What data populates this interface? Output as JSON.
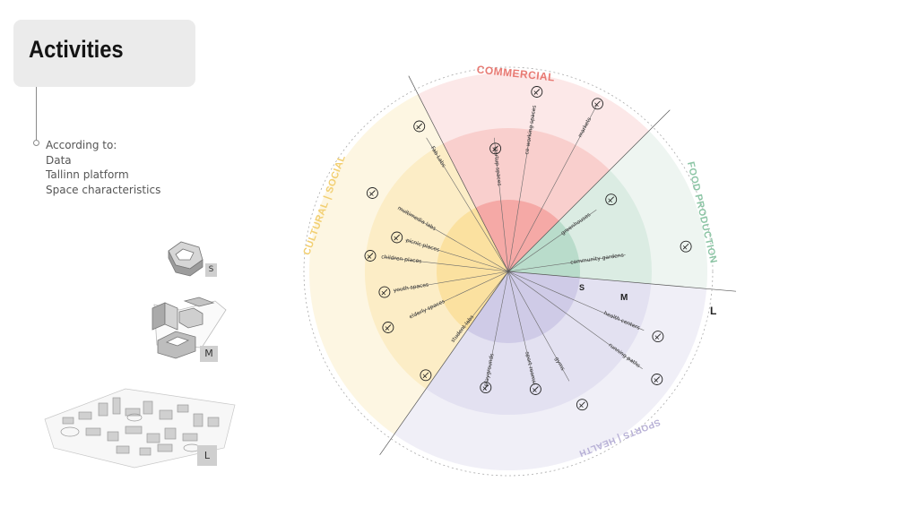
{
  "header": {
    "title": "Activities"
  },
  "info": {
    "heading": "According to:",
    "items": [
      "Data",
      "Tallinn platform",
      "Space characteristics"
    ]
  },
  "scale_tags": {
    "small": "S",
    "medium": "M",
    "large": "L"
  },
  "wheel": {
    "ring_labels": {
      "s": "S",
      "m": "M",
      "l": "L"
    },
    "categories": [
      {
        "name": "COMMERCIAL",
        "color": "#e87a73"
      },
      {
        "name": "FOOD PRODUCTION",
        "color": "#8cc5a5"
      },
      {
        "name": "SPORTS | HEALTH",
        "color": "#b7b0d6"
      },
      {
        "name": "CULTURAL | SOCIAL",
        "color": "#f2cf72"
      }
    ],
    "activities": [
      "Fab Labs",
      "startup spaces",
      "co-working spaces",
      "markets",
      "greenhouses",
      "community gardens",
      "health centers",
      "running paths",
      "gyms",
      "sport rooms",
      "playgrounds",
      "student labs",
      "elderly spaces",
      "youth spaces",
      "children places",
      "picnic places",
      "multimedia labs"
    ],
    "icons": [
      "stars-icon",
      "seedling-icon",
      "people-meeting-icon",
      "market-stall-icon",
      "greenhouse-icon",
      "vegetable-plants-icon",
      "heart-plus-icon",
      "running-path-icon",
      "gym-equipment-icon",
      "stretching-person-icon",
      "swing-icon",
      "student-icon",
      "elderly-couple-icon",
      "youth-group-icon",
      "children-icon",
      "picnic-icon",
      "multimedia-icon"
    ]
  }
}
